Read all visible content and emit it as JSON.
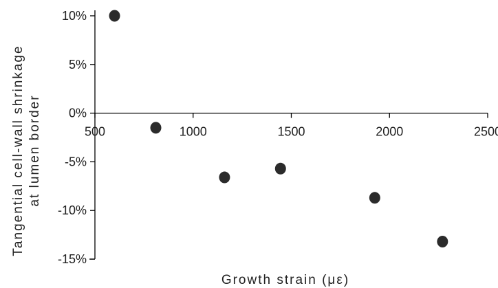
{
  "chart_data": {
    "type": "scatter",
    "title": "",
    "xlabel": "Growth strain (με)",
    "ylabel_lines": [
      "Tangential cell-wall shrinkage",
      "at lumen border"
    ],
    "xlim": [
      500,
      2500
    ],
    "ylim": [
      -15,
      10
    ],
    "x_ticks": [
      500,
      1000,
      1500,
      2000,
      2500
    ],
    "x_tick_labels": [
      "500",
      "1000",
      "1500",
      "2000",
      "2500"
    ],
    "y_ticks": [
      10,
      5,
      0,
      -5,
      -10,
      -15
    ],
    "y_tick_labels": [
      "10%",
      "5%",
      "0%",
      "-5%",
      "-10%",
      "-15%"
    ],
    "x_axis_position": 0,
    "grid": false,
    "legend": "none",
    "marker_color": "#2b2b2b",
    "axis_color": "#000000",
    "series": [
      {
        "x": [
          600,
          810,
          1160,
          1445,
          1925,
          2270
        ],
        "y": [
          10.0,
          -1.5,
          -6.6,
          -5.7,
          -8.7,
          -13.2
        ]
      }
    ]
  }
}
